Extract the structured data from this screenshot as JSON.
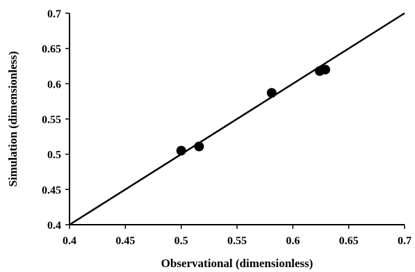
{
  "chart_data": {
    "type": "scatter",
    "title": "",
    "xlabel": "Observational (dimensionless)",
    "ylabel": "Simulation (dimensionless)",
    "xlim": [
      0.4,
      0.7
    ],
    "ylim": [
      0.4,
      0.7
    ],
    "xticks": [
      0.4,
      0.45,
      0.5,
      0.55,
      0.6,
      0.65,
      0.7
    ],
    "yticks": [
      0.4,
      0.45,
      0.5,
      0.55,
      0.6,
      0.65,
      0.7
    ],
    "xtick_labels": [
      "0.4",
      "0.45",
      "0.5",
      "0.55",
      "0.6",
      "0.65",
      "0.7"
    ],
    "ytick_labels": [
      "0.4",
      "0.45",
      "0.5",
      "0.55",
      "0.6",
      "0.65",
      "0.7"
    ],
    "grid": false,
    "legend": "none",
    "series": [
      {
        "type": "scatter",
        "color": "#000000",
        "points": [
          {
            "x": 0.5,
            "y": 0.505
          },
          {
            "x": 0.516,
            "y": 0.511
          },
          {
            "x": 0.581,
            "y": 0.587
          },
          {
            "x": 0.624,
            "y": 0.618
          },
          {
            "x": 0.629,
            "y": 0.62
          }
        ]
      },
      {
        "type": "line",
        "color": "#000000",
        "points": [
          {
            "x": 0.4,
            "y": 0.4
          },
          {
            "x": 0.7,
            "y": 0.7
          }
        ]
      }
    ]
  }
}
